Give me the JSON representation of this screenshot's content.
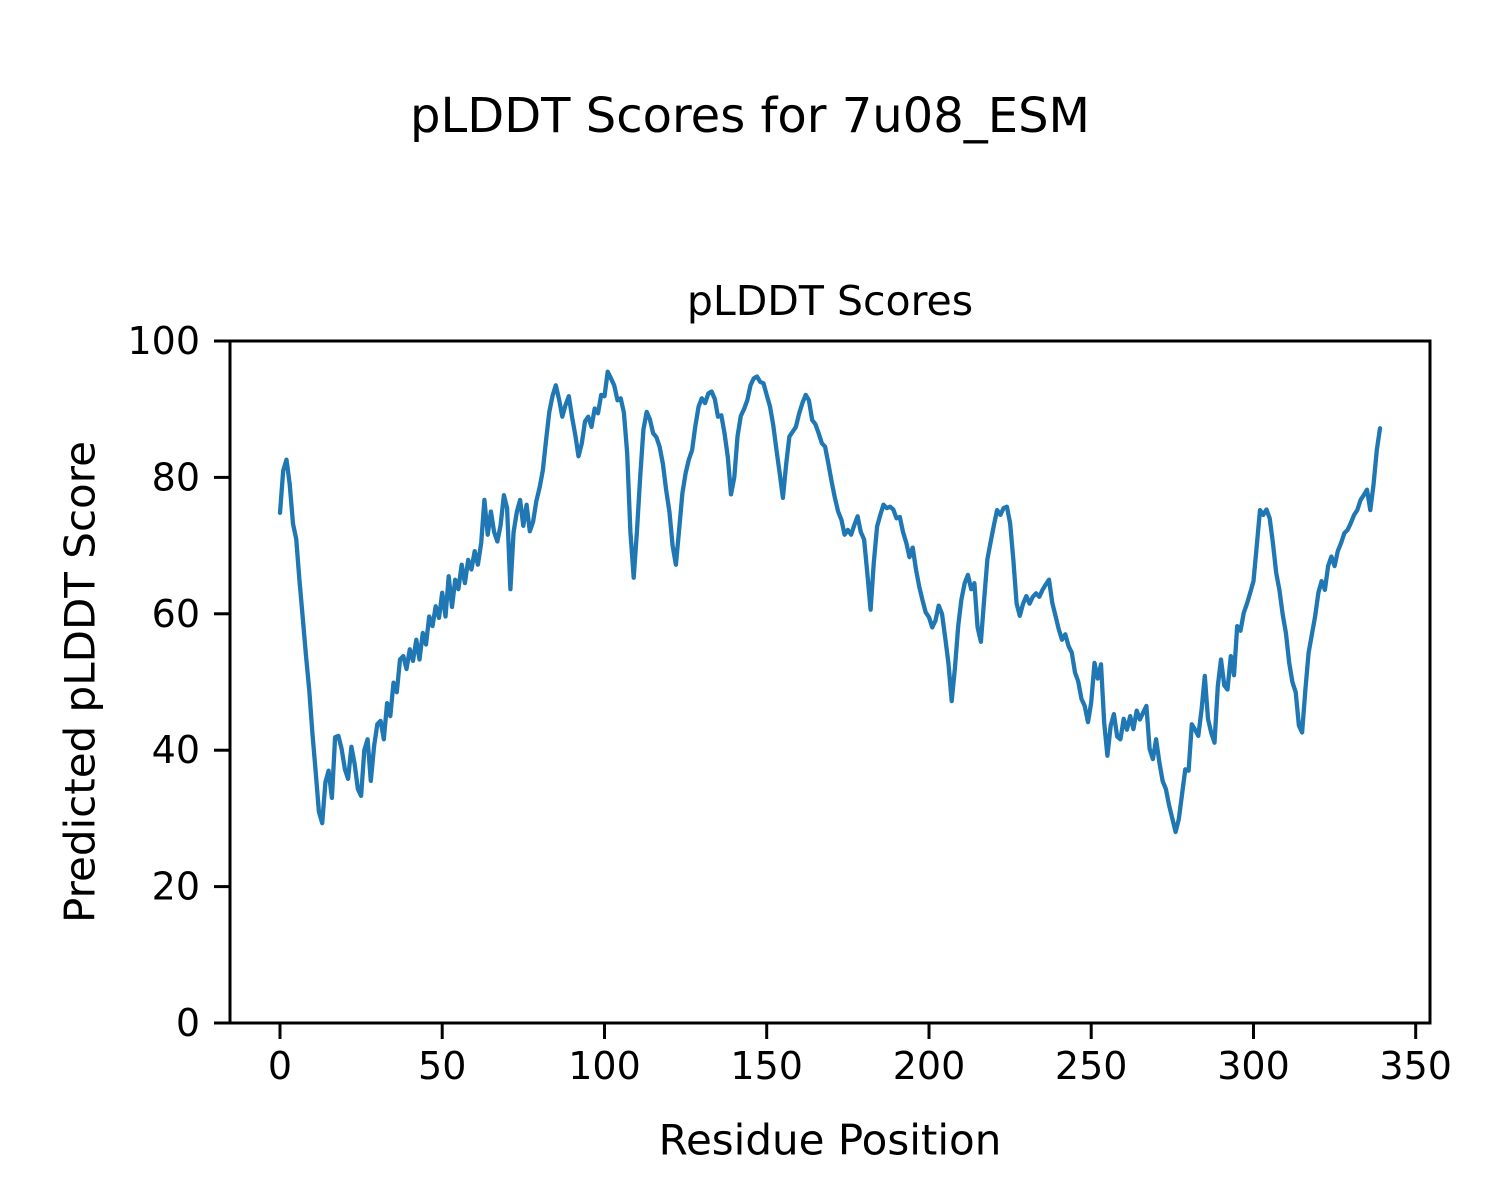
{
  "figure": {
    "suptitle": "pLDDT Scores for 7u08_ESM"
  },
  "chart_data": {
    "type": "line",
    "title": "pLDDT Scores",
    "xlabel": "Residue Position",
    "ylabel": "Predicted pLDDT Score",
    "series_name": "pLDDT",
    "x_start": 0,
    "x_step": 1,
    "xlim": [
      -15.4,
      354.4
    ],
    "ylim": [
      0,
      100
    ],
    "x_ticks": [
      0,
      50,
      100,
      150,
      200,
      250,
      300,
      350
    ],
    "y_ticks": [
      0,
      20,
      40,
      60,
      80,
      100
    ],
    "line_color": "#1f77b4",
    "axis_color": "#000000",
    "background": "#ffffff",
    "grid": false,
    "legend": false,
    "values": [
      74.8,
      81.0,
      82.6,
      79.0,
      73.2,
      71.0,
      65.0,
      59.5,
      54.0,
      48.9,
      42.5,
      36.8,
      31.0,
      29.3,
      35.3,
      37.0,
      33.0,
      41.9,
      42.1,
      40.2,
      37.2,
      35.8,
      40.5,
      38.0,
      34.3,
      33.3,
      40.0,
      41.6,
      35.5,
      40.6,
      43.8,
      44.3,
      41.6,
      46.9,
      45.0,
      49.9,
      48.5,
      53.3,
      53.8,
      51.9,
      54.8,
      53.1,
      56.2,
      53.3,
      57.2,
      55.5,
      59.6,
      58.2,
      61.1,
      59.4,
      63.1,
      59.6,
      65.5,
      61.0,
      65.0,
      63.6,
      67.2,
      64.5,
      67.9,
      66.5,
      69.2,
      67.2,
      70.4,
      76.7,
      71.6,
      75.0,
      72.0,
      70.6,
      73.0,
      77.4,
      75.5,
      63.6,
      72.0,
      75.0,
      76.7,
      72.9,
      76.0,
      72.1,
      73.5,
      76.5,
      78.5,
      81.0,
      85.5,
      89.6,
      92.0,
      93.5,
      91.5,
      88.9,
      90.6,
      91.9,
      88.9,
      86.2,
      83.1,
      85.0,
      88.2,
      88.9,
      87.4,
      90.1,
      89.4,
      92.1,
      91.9,
      95.5,
      94.5,
      93.5,
      91.3,
      91.6,
      89.5,
      83.5,
      72.0,
      65.3,
      72.0,
      80.1,
      87.0,
      89.6,
      88.5,
      86.5,
      85.9,
      84.5,
      82.0,
      78.2,
      75.0,
      70.0,
      67.2,
      72.3,
      77.7,
      80.6,
      82.6,
      84.0,
      87.5,
      90.4,
      91.6,
      90.9,
      92.3,
      92.6,
      91.5,
      88.9,
      89.1,
      86.5,
      83.0,
      77.5,
      80.0,
      86.0,
      89.0,
      90.0,
      91.3,
      93.5,
      94.5,
      94.8,
      94.0,
      93.8,
      92.1,
      90.4,
      87.7,
      84.0,
      80.6,
      77.0,
      82.0,
      86.0,
      86.7,
      87.4,
      89.4,
      90.9,
      92.1,
      91.3,
      88.4,
      87.8,
      86.5,
      85.0,
      84.5,
      82.0,
      79.4,
      77.0,
      75.0,
      73.8,
      71.6,
      72.3,
      71.6,
      73.0,
      74.3,
      72.0,
      70.9,
      66.0,
      60.6,
      67.5,
      72.8,
      74.5,
      76.0,
      75.5,
      75.7,
      75.3,
      74.0,
      74.2,
      72.0,
      70.4,
      68.3,
      69.7,
      66.5,
      64.0,
      62.0,
      60.2,
      59.5,
      58.0,
      59.0,
      61.2,
      60.0,
      56.5,
      52.8,
      47.2,
      52.0,
      58.2,
      62.1,
      64.5,
      65.7,
      63.6,
      64.5,
      58.0,
      55.9,
      62.0,
      68.0,
      70.5,
      73.0,
      75.2,
      74.5,
      75.5,
      75.7,
      73.3,
      68.0,
      61.5,
      59.7,
      61.5,
      62.6,
      61.5,
      62.5,
      63.0,
      62.5,
      63.5,
      64.3,
      65.0,
      61.6,
      59.7,
      57.7,
      56.2,
      57.0,
      55.3,
      54.3,
      51.4,
      50.1,
      47.5,
      46.5,
      44.1,
      47.0,
      52.8,
      50.5,
      52.6,
      44.0,
      39.2,
      43.6,
      45.3,
      42.0,
      41.6,
      44.6,
      43.0,
      45.0,
      43.1,
      45.8,
      44.5,
      45.5,
      46.5,
      40.2,
      38.7,
      41.6,
      38.2,
      35.5,
      34.3,
      31.9,
      30.0,
      28.0,
      29.9,
      33.6,
      37.2,
      37.0,
      43.8,
      43.0,
      42.1,
      46.0,
      50.9,
      44.6,
      42.5,
      41.1,
      49.4,
      53.3,
      49.5,
      48.9,
      53.8,
      51.0,
      58.2,
      57.5,
      60.1,
      61.5,
      63.1,
      64.8,
      69.9,
      75.2,
      74.5,
      75.3,
      74.0,
      70.4,
      66.0,
      63.5,
      59.9,
      57.2,
      52.8,
      50.0,
      48.5,
      43.6,
      42.6,
      48.9,
      54.3,
      57.0,
      59.6,
      63.1,
      64.8,
      63.5,
      67.0,
      68.4,
      67.0,
      69.2,
      70.4,
      71.8,
      72.3,
      73.3,
      74.5,
      75.2,
      76.7,
      77.4,
      78.2,
      75.2,
      78.9,
      84.0,
      87.2
    ]
  }
}
